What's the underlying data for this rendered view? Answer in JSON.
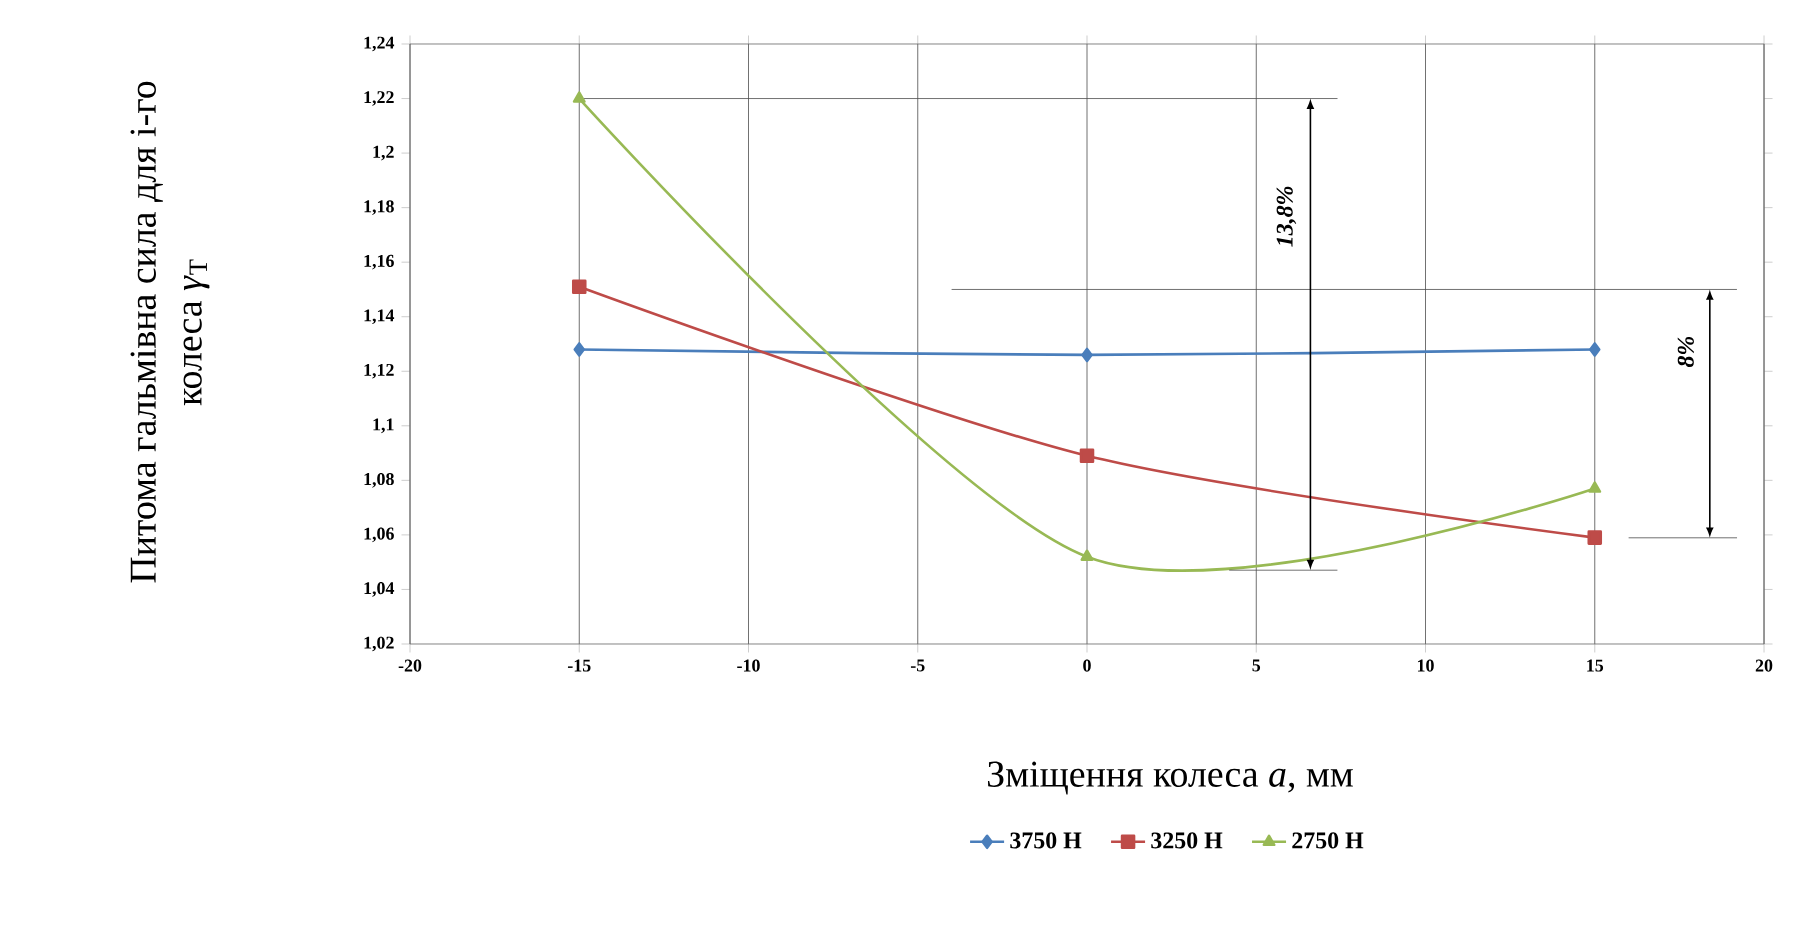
{
  "chart_data": {
    "type": "line",
    "xlabel": "Зміщення колеса *a*, мм",
    "ylabel": "Питома гальмівна сила для i-го колеса *γ*$_{T}$",
    "x": [
      -15,
      0,
      15
    ],
    "series": [
      {
        "name": "3750 Н",
        "color": "#4a7ebb",
        "marker": "diamond",
        "values": [
          1.128,
          1.126,
          1.128
        ]
      },
      {
        "name": "3250 Н",
        "color": "#be4b48",
        "marker": "square",
        "values": [
          1.151,
          1.089,
          1.059
        ]
      },
      {
        "name": "2750 Н",
        "color": "#98b954",
        "marker": "triangle",
        "values": [
          1.22,
          1.052,
          1.077
        ]
      }
    ],
    "xlim": [
      -20,
      20
    ],
    "xticks": [
      -20,
      -15,
      -10,
      -5,
      0,
      5,
      10,
      15,
      20
    ],
    "ylim": [
      1.02,
      1.24
    ],
    "yticks": [
      {
        "value": 1.02,
        "label": "1,02"
      },
      {
        "value": 1.04,
        "label": "1,04"
      },
      {
        "value": 1.06,
        "label": "1,06"
      },
      {
        "value": 1.08,
        "label": "1,08"
      },
      {
        "value": 1.1,
        "label": "1,1"
      },
      {
        "value": 1.12,
        "label": "1,12"
      },
      {
        "value": 1.14,
        "label": "1,14"
      },
      {
        "value": 1.16,
        "label": "1,16"
      },
      {
        "value": 1.18,
        "label": "1,18"
      },
      {
        "value": 1.2,
        "label": "1,2"
      },
      {
        "value": 1.22,
        "label": "1,22"
      },
      {
        "value": 1.24,
        "label": "1,24"
      }
    ],
    "grid": "x",
    "legend": "bottom",
    "ref_lines": [
      {
        "axis": "y",
        "value": 1.22,
        "color": "#4c4c4c"
      },
      {
        "axis": "y",
        "value": 1.15,
        "color": "#4c4c4c"
      }
    ],
    "annotations": [
      "13,8%",
      "8%"
    ]
  }
}
